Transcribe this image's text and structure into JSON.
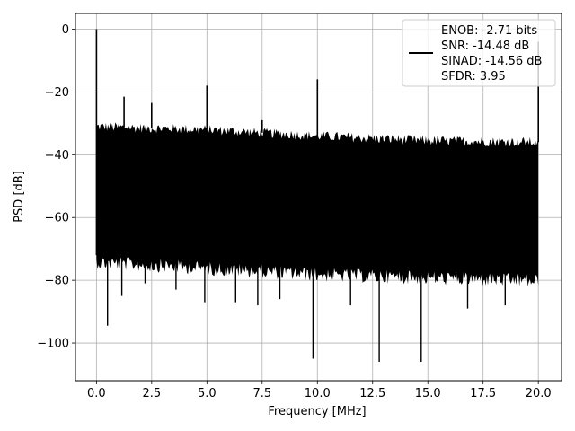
{
  "chart_data": {
    "type": "line",
    "title": "",
    "xlabel": "Frequency [MHz]",
    "ylabel": "PSD [dB]",
    "xlim": [
      -0.95,
      21.05
    ],
    "ylim": [
      -112,
      5
    ],
    "grid": true,
    "x_ticks": [
      0.0,
      2.5,
      5.0,
      7.5,
      10.0,
      12.5,
      15.0,
      17.5,
      20.0
    ],
    "x_tick_labels": [
      "0.0",
      "2.5",
      "5.0",
      "7.5",
      "10.0",
      "12.5",
      "15.0",
      "17.5",
      "20.0"
    ],
    "y_ticks": [
      0,
      -20,
      -40,
      -60,
      -80,
      -100
    ],
    "y_tick_labels": [
      "0",
      "−20",
      "−40",
      "−60",
      "−80",
      "−100"
    ],
    "legend": {
      "placement": "top-right",
      "lines": [
        "ENOB: -2.71 bits",
        "SNR: -14.48 dB",
        "SINAD: -14.56 dB",
        "SFDR: 3.95"
      ]
    },
    "series": [
      {
        "color": "#000000",
        "freq_range_mhz": [
          0,
          20
        ],
        "noise_floor_upper_db": [
          [
            0,
            -31
          ],
          [
            5,
            -32
          ],
          [
            10,
            -34
          ],
          [
            15,
            -35.5
          ],
          [
            20,
            -36
          ]
        ],
        "noise_floor_lower_db": [
          [
            0,
            -72
          ],
          [
            5,
            -74
          ],
          [
            10,
            -76
          ],
          [
            15,
            -77
          ],
          [
            20,
            -78
          ]
        ],
        "peaks": [
          {
            "x": 0.0,
            "y": 0
          },
          {
            "x": 1.25,
            "y": -21.5
          },
          {
            "x": 2.5,
            "y": -23.5
          },
          {
            "x": 5.0,
            "y": -18
          },
          {
            "x": 7.5,
            "y": -29
          },
          {
            "x": 10.0,
            "y": -16
          },
          {
            "x": 20.0,
            "y": -4
          }
        ],
        "dips": [
          {
            "x": 0.3,
            "y": -72
          },
          {
            "x": 0.5,
            "y": -94.5
          },
          {
            "x": 1.15,
            "y": -85
          },
          {
            "x": 2.2,
            "y": -81
          },
          {
            "x": 3.6,
            "y": -83
          },
          {
            "x": 4.9,
            "y": -87
          },
          {
            "x": 6.3,
            "y": -87
          },
          {
            "x": 7.3,
            "y": -88
          },
          {
            "x": 8.3,
            "y": -86
          },
          {
            "x": 9.8,
            "y": -105
          },
          {
            "x": 11.5,
            "y": -88
          },
          {
            "x": 12.8,
            "y": -106
          },
          {
            "x": 14.7,
            "y": -106
          },
          {
            "x": 16.8,
            "y": -89
          },
          {
            "x": 18.5,
            "y": -88
          }
        ]
      }
    ]
  }
}
